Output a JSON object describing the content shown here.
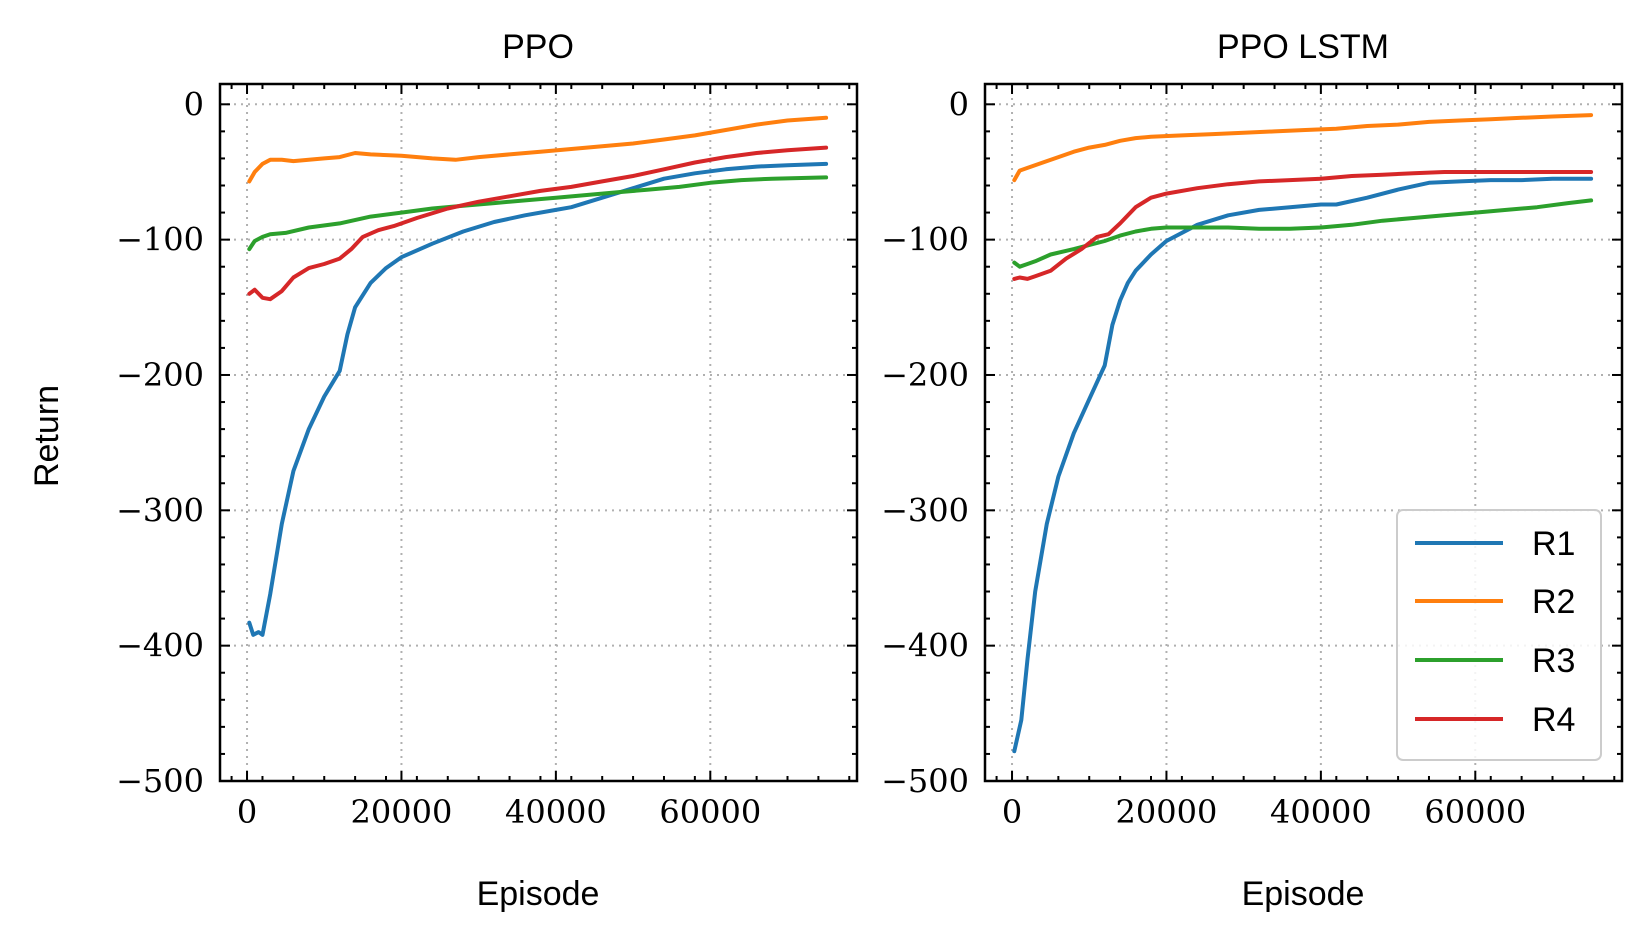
{
  "chart_data": [
    {
      "type": "line",
      "title": "PPO",
      "xlabel": "Episode",
      "ylabel": "Return",
      "xlim": [
        -3500,
        79000
      ],
      "ylim": [
        -500,
        15
      ],
      "xticks": [
        0,
        20000,
        40000,
        60000
      ],
      "xtick_labels": [
        "0",
        "20000",
        "40000",
        "60000"
      ],
      "yticks": [
        0,
        -100,
        -200,
        -300,
        -400,
        -500
      ],
      "ytick_labels": [
        "0",
        "−100",
        "−200",
        "−300",
        "−400",
        "−500"
      ],
      "grid": true,
      "series": [
        {
          "name": "R1",
          "color": "#1f77b4",
          "points": [
            [
              300,
              -383
            ],
            [
              800,
              -392
            ],
            [
              1500,
              -390
            ],
            [
              2000,
              -392
            ],
            [
              3000,
              -362
            ],
            [
              4500,
              -310
            ],
            [
              6000,
              -271
            ],
            [
              8000,
              -240
            ],
            [
              10000,
              -216
            ],
            [
              12000,
              -197
            ],
            [
              13000,
              -170
            ],
            [
              14000,
              -150
            ],
            [
              16000,
              -132
            ],
            [
              18000,
              -121
            ],
            [
              20000,
              -113
            ],
            [
              24000,
              -103
            ],
            [
              28000,
              -94
            ],
            [
              32000,
              -87
            ],
            [
              36000,
              -82
            ],
            [
              40000,
              -78
            ],
            [
              42000,
              -76
            ],
            [
              46000,
              -69
            ],
            [
              50000,
              -62
            ],
            [
              54000,
              -55
            ],
            [
              58000,
              -51
            ],
            [
              62000,
              -48
            ],
            [
              66000,
              -46
            ],
            [
              70000,
              -45
            ],
            [
              75000,
              -44
            ]
          ]
        },
        {
          "name": "R2",
          "color": "#ff7f0e",
          "points": [
            [
              300,
              -57
            ],
            [
              1000,
              -50
            ],
            [
              2000,
              -44
            ],
            [
              3000,
              -41
            ],
            [
              4500,
              -41
            ],
            [
              6000,
              -42
            ],
            [
              8000,
              -41
            ],
            [
              10000,
              -40
            ],
            [
              12000,
              -39
            ],
            [
              14000,
              -36
            ],
            [
              16000,
              -37
            ],
            [
              20000,
              -38
            ],
            [
              24000,
              -40
            ],
            [
              27000,
              -41
            ],
            [
              30000,
              -39
            ],
            [
              34000,
              -37
            ],
            [
              38000,
              -35
            ],
            [
              42000,
              -33
            ],
            [
              46000,
              -31
            ],
            [
              50000,
              -29
            ],
            [
              54000,
              -26
            ],
            [
              58000,
              -23
            ],
            [
              62000,
              -19
            ],
            [
              66000,
              -15
            ],
            [
              70000,
              -12
            ],
            [
              75000,
              -10
            ]
          ]
        },
        {
          "name": "R3",
          "color": "#2ca02c",
          "points": [
            [
              300,
              -107
            ],
            [
              1000,
              -101
            ],
            [
              2000,
              -98
            ],
            [
              3000,
              -96
            ],
            [
              5000,
              -95
            ],
            [
              8000,
              -91
            ],
            [
              12000,
              -88
            ],
            [
              16000,
              -83
            ],
            [
              20000,
              -80
            ],
            [
              24000,
              -77
            ],
            [
              28000,
              -75
            ],
            [
              32000,
              -73
            ],
            [
              36000,
              -71
            ],
            [
              40000,
              -69
            ],
            [
              44000,
              -67
            ],
            [
              48000,
              -65
            ],
            [
              52000,
              -63
            ],
            [
              56000,
              -61
            ],
            [
              60000,
              -58
            ],
            [
              64000,
              -56
            ],
            [
              68000,
              -55
            ],
            [
              75000,
              -54
            ]
          ]
        },
        {
          "name": "R4",
          "color": "#d62728",
          "points": [
            [
              300,
              -140
            ],
            [
              1000,
              -137
            ],
            [
              2000,
              -143
            ],
            [
              3000,
              -144
            ],
            [
              4500,
              -138
            ],
            [
              6000,
              -128
            ],
            [
              8000,
              -121
            ],
            [
              10000,
              -118
            ],
            [
              12000,
              -114
            ],
            [
              13500,
              -107
            ],
            [
              15000,
              -98
            ],
            [
              17000,
              -93
            ],
            [
              19000,
              -90
            ],
            [
              22000,
              -84
            ],
            [
              26000,
              -77
            ],
            [
              30000,
              -72
            ],
            [
              34000,
              -68
            ],
            [
              38000,
              -64
            ],
            [
              42000,
              -61
            ],
            [
              46000,
              -57
            ],
            [
              50000,
              -53
            ],
            [
              54000,
              -48
            ],
            [
              58000,
              -43
            ],
            [
              62000,
              -39
            ],
            [
              66000,
              -36
            ],
            [
              70000,
              -34
            ],
            [
              75000,
              -32
            ]
          ]
        }
      ]
    },
    {
      "type": "line",
      "title": "PPO LSTM",
      "xlabel": "Episode",
      "ylabel": "",
      "xlim": [
        -3500,
        79000
      ],
      "ylim": [
        -500,
        15
      ],
      "xticks": [
        0,
        20000,
        40000,
        60000
      ],
      "xtick_labels": [
        "0",
        "20000",
        "40000",
        "60000"
      ],
      "yticks": [
        0,
        -100,
        -200,
        -300,
        -400,
        -500
      ],
      "ytick_labels": [
        "0",
        "−100",
        "−200",
        "−300",
        "−400",
        "−500"
      ],
      "grid": true,
      "legend": {
        "position": "lower-right",
        "entries": [
          "R1",
          "R2",
          "R3",
          "R4"
        ]
      },
      "series": [
        {
          "name": "R1",
          "color": "#1f77b4",
          "points": [
            [
              300,
              -478
            ],
            [
              1200,
              -455
            ],
            [
              2000,
              -410
            ],
            [
              3000,
              -360
            ],
            [
              4500,
              -310
            ],
            [
              6000,
              -275
            ],
            [
              8000,
              -243
            ],
            [
              10000,
              -218
            ],
            [
              12000,
              -193
            ],
            [
              13000,
              -163
            ],
            [
              14000,
              -145
            ],
            [
              15000,
              -132
            ],
            [
              16000,
              -123
            ],
            [
              18000,
              -111
            ],
            [
              20000,
              -101
            ],
            [
              24000,
              -89
            ],
            [
              28000,
              -82
            ],
            [
              32000,
              -78
            ],
            [
              36000,
              -76
            ],
            [
              40000,
              -74
            ],
            [
              42000,
              -74
            ],
            [
              46000,
              -69
            ],
            [
              50000,
              -63
            ],
            [
              54000,
              -58
            ],
            [
              58000,
              -57
            ],
            [
              62000,
              -56
            ],
            [
              66000,
              -56
            ],
            [
              70000,
              -55
            ],
            [
              75000,
              -55
            ]
          ]
        },
        {
          "name": "R2",
          "color": "#ff7f0e",
          "points": [
            [
              300,
              -56
            ],
            [
              1000,
              -49
            ],
            [
              2000,
              -47
            ],
            [
              4000,
              -43
            ],
            [
              6000,
              -39
            ],
            [
              8000,
              -35
            ],
            [
              10000,
              -32
            ],
            [
              12000,
              -30
            ],
            [
              14000,
              -27
            ],
            [
              16000,
              -25
            ],
            [
              18000,
              -24
            ],
            [
              22000,
              -23
            ],
            [
              26000,
              -22
            ],
            [
              30000,
              -21
            ],
            [
              34000,
              -20
            ],
            [
              38000,
              -19
            ],
            [
              42000,
              -18
            ],
            [
              46000,
              -16
            ],
            [
              50000,
              -15
            ],
            [
              54000,
              -13
            ],
            [
              58000,
              -12
            ],
            [
              62000,
              -11
            ],
            [
              66000,
              -10
            ],
            [
              70000,
              -9
            ],
            [
              75000,
              -8
            ]
          ]
        },
        {
          "name": "R3",
          "color": "#2ca02c",
          "points": [
            [
              300,
              -117
            ],
            [
              1000,
              -120
            ],
            [
              2000,
              -118
            ],
            [
              3000,
              -116
            ],
            [
              5000,
              -111
            ],
            [
              8000,
              -107
            ],
            [
              12000,
              -101
            ],
            [
              14000,
              -97
            ],
            [
              16000,
              -94
            ],
            [
              18000,
              -92
            ],
            [
              20000,
              -91
            ],
            [
              24000,
              -91
            ],
            [
              28000,
              -91
            ],
            [
              32000,
              -92
            ],
            [
              36000,
              -92
            ],
            [
              40000,
              -91
            ],
            [
              44000,
              -89
            ],
            [
              48000,
              -86
            ],
            [
              52000,
              -84
            ],
            [
              56000,
              -82
            ],
            [
              60000,
              -80
            ],
            [
              64000,
              -78
            ],
            [
              68000,
              -76
            ],
            [
              72000,
              -73
            ],
            [
              75000,
              -71
            ]
          ]
        },
        {
          "name": "R4",
          "color": "#d62728",
          "points": [
            [
              300,
              -129
            ],
            [
              1000,
              -128
            ],
            [
              2000,
              -129
            ],
            [
              3000,
              -127
            ],
            [
              5000,
              -123
            ],
            [
              7000,
              -114
            ],
            [
              9000,
              -107
            ],
            [
              11000,
              -98
            ],
            [
              12500,
              -96
            ],
            [
              14000,
              -88
            ],
            [
              16000,
              -76
            ],
            [
              18000,
              -69
            ],
            [
              20000,
              -66
            ],
            [
              24000,
              -62
            ],
            [
              28000,
              -59
            ],
            [
              32000,
              -57
            ],
            [
              36000,
              -56
            ],
            [
              40000,
              -55
            ],
            [
              44000,
              -53
            ],
            [
              48000,
              -52
            ],
            [
              52000,
              -51
            ],
            [
              56000,
              -50
            ],
            [
              60000,
              -50
            ],
            [
              66000,
              -50
            ],
            [
              70000,
              -50
            ],
            [
              75000,
              -50
            ]
          ]
        }
      ]
    }
  ]
}
